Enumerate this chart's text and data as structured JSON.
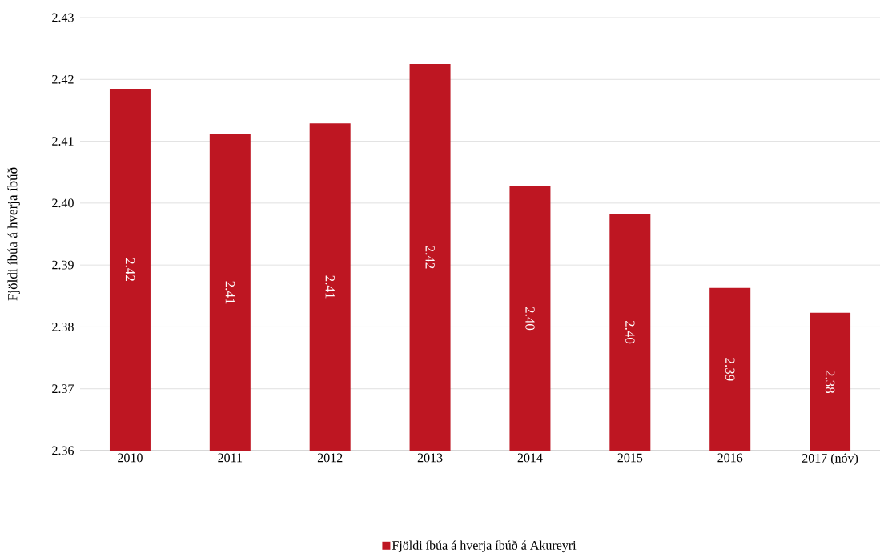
{
  "chart_data": {
    "type": "bar",
    "ylabel": "Fjöldi íbúa á hverja íbúð",
    "categories": [
      "2010",
      "2011",
      "2012",
      "2013",
      "2014",
      "2015",
      "2016",
      "2017 (nóv)"
    ],
    "series": [
      {
        "name": "Fjöldi íbúa á hverja íbúð á Akureyri",
        "color": "#be1622",
        "values": [
          2.4185,
          2.4111,
          2.4129,
          2.4225,
          2.4027,
          2.3983,
          2.3863,
          2.3823
        ],
        "value_labels": [
          "2.42",
          "2.41",
          "2.41",
          "2.42",
          "2.40",
          "2.40",
          "2.39",
          "2.38"
        ]
      }
    ],
    "ylim": [
      2.36,
      2.43
    ],
    "yticks": [
      2.36,
      2.37,
      2.38,
      2.39,
      {
        "value": 2.4,
        "label": "2.40"
      },
      2.41,
      2.42,
      2.43
    ],
    "grid": "y",
    "legend": "bottom"
  }
}
